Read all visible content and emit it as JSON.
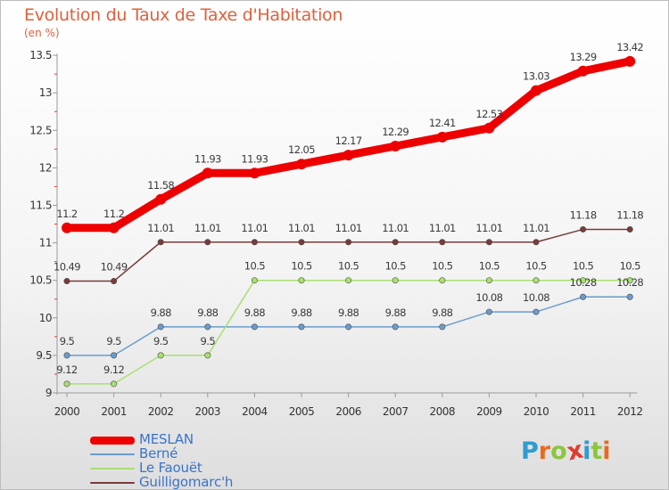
{
  "title": "Evolution du Taux de Taxe d'Habitation",
  "subtitle": "(en %)",
  "logo": {
    "letters": [
      "P",
      "r",
      "o",
      "x",
      "i",
      "t",
      "i"
    ],
    "colors": [
      "#2f9cd0",
      "#e86b1f",
      "#8cc63f",
      "#e23b2e",
      "#2f9cd0",
      "#8cc63f",
      "#e86b1f"
    ]
  },
  "chart_data": {
    "type": "line",
    "title": "Evolution du Taux de Taxe d'Habitation",
    "subtitle": "(en %)",
    "xlabel": "",
    "ylabel": "(en %)",
    "x": [
      "2000",
      "2001",
      "2002",
      "2003",
      "2004",
      "2005",
      "2006",
      "2007",
      "2008",
      "2009",
      "2010",
      "2011",
      "2012"
    ],
    "ylim": [
      9,
      13.5
    ],
    "yticks": [
      "9",
      "9.5",
      "10",
      "10.5",
      "11",
      "11.5",
      "12",
      "12.5",
      "13",
      "13.5"
    ],
    "grid": false,
    "legend_position": "bottom-left",
    "series": [
      {
        "name": "MESLAN",
        "color": "#ee0000",
        "values": [
          11.2,
          11.2,
          11.58,
          11.93,
          11.93,
          12.05,
          12.17,
          12.29,
          12.41,
          12.53,
          13.03,
          13.29,
          13.42
        ],
        "labels": [
          "11.2",
          "11.2",
          "11.58",
          "11.93",
          "11.93",
          "12.05",
          "12.17",
          "12.29",
          "12.41",
          "12.53",
          "13.03",
          "13.29",
          "13.42"
        ]
      },
      {
        "name": "Berné",
        "color": "#6a9ccd",
        "values": [
          9.5,
          9.5,
          9.88,
          9.88,
          9.88,
          9.88,
          9.88,
          9.88,
          9.88,
          10.08,
          10.08,
          10.28,
          10.28
        ],
        "labels": [
          "9.5",
          "9.5",
          "9.88",
          "9.88",
          "9.88",
          "9.88",
          "9.88",
          "9.88",
          "9.88",
          "10.08",
          "10.08",
          "10.28",
          "10.28"
        ]
      },
      {
        "name": "Le Faouët",
        "color": "#a8e070",
        "values": [
          9.12,
          9.12,
          9.5,
          9.5,
          10.5,
          10.5,
          10.5,
          10.5,
          10.5,
          10.5,
          10.5,
          10.5,
          10.5
        ],
        "labels": [
          "9.12",
          "9.12",
          "9.5",
          "9.5",
          "10.5",
          "10.5",
          "10.5",
          "10.5",
          "10.5",
          "10.5",
          "10.5",
          "10.5",
          "10.5"
        ]
      },
      {
        "name": "Guilligomarc'h",
        "color": "#7a3b3b",
        "values": [
          10.49,
          10.49,
          11.01,
          11.01,
          11.01,
          11.01,
          11.01,
          11.01,
          11.01,
          11.01,
          11.01,
          11.18,
          11.18
        ],
        "labels": [
          "10.49",
          "10.49",
          "11.01",
          "11.01",
          "11.01",
          "11.01",
          "11.01",
          "11.01",
          "11.01",
          "11.01",
          "11.01",
          "11.18",
          "11.18"
        ]
      }
    ]
  }
}
